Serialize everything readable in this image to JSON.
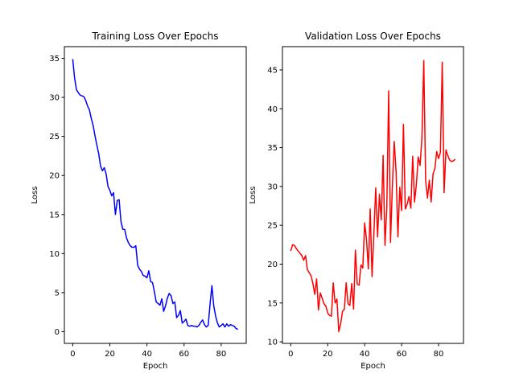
{
  "chart_data": [
    {
      "type": "line",
      "title": "Training Loss Over Epochs",
      "xlabel": "Epoch",
      "ylabel": "Loss",
      "xlim": [
        -4.5,
        93.5
      ],
      "ylim": [
        -1.5,
        36.5
      ],
      "xticks": [
        0,
        20,
        40,
        60,
        80
      ],
      "yticks": [
        0,
        5,
        10,
        15,
        20,
        25,
        30,
        35
      ],
      "grid": false,
      "color": "#0000ff",
      "x": [
        0,
        1,
        2,
        3,
        4,
        5,
        6,
        7,
        8,
        9,
        10,
        11,
        12,
        13,
        14,
        15,
        16,
        17,
        18,
        19,
        20,
        21,
        22,
        23,
        24,
        25,
        26,
        27,
        28,
        29,
        30,
        31,
        32,
        33,
        34,
        35,
        36,
        37,
        38,
        39,
        40,
        41,
        42,
        43,
        44,
        45,
        46,
        47,
        48,
        49,
        50,
        51,
        52,
        53,
        54,
        55,
        56,
        57,
        58,
        59,
        60,
        61,
        62,
        63,
        64,
        65,
        66,
        67,
        68,
        69,
        70,
        71,
        72,
        73,
        74,
        75,
        76,
        77,
        78,
        79,
        80,
        81,
        82,
        83,
        84,
        85,
        86,
        87,
        88,
        89
      ],
      "values": [
        34.9,
        32.5,
        31.0,
        30.6,
        30.3,
        30.2,
        30.1,
        29.6,
        28.9,
        28.4,
        27.3,
        26.4,
        25.1,
        23.9,
        22.8,
        21.2,
        20.6,
        21.0,
        20.2,
        18.6,
        18.1,
        17.4,
        17.8,
        15.0,
        16.8,
        16.9,
        14.1,
        13.1,
        13.1,
        12.0,
        11.4,
        11.0,
        10.8,
        10.8,
        11.0,
        8.5,
        8.0,
        7.7,
        7.2,
        7.1,
        6.9,
        7.8,
        6.4,
        6.3,
        5.1,
        3.8,
        3.6,
        3.4,
        4.2,
        2.6,
        3.3,
        4.3,
        4.9,
        4.6,
        3.6,
        3.8,
        1.8,
        2.1,
        2.7,
        1.1,
        1.3,
        1.6,
        0.8,
        0.7,
        0.8,
        0.7,
        0.7,
        0.6,
        0.8,
        1.2,
        1.5,
        0.9,
        0.6,
        0.8,
        3.5,
        5.9,
        3.3,
        2.0,
        1.1,
        0.6,
        0.8,
        1.0,
        0.6,
        1.0,
        0.7,
        0.9,
        0.8,
        0.7,
        0.4,
        0.3
      ]
    },
    {
      "type": "line",
      "title": "Validation Loss Over Epochs",
      "xlabel": "Epoch",
      "ylabel": "Loss",
      "xlim": [
        -4.5,
        93.5
      ],
      "ylim": [
        9.8,
        48.0
      ],
      "xticks": [
        0,
        20,
        40,
        60,
        80
      ],
      "yticks": [
        10,
        15,
        20,
        25,
        30,
        35,
        40,
        45
      ],
      "grid": false,
      "color": "#ff0000",
      "x": [
        0,
        1,
        2,
        3,
        4,
        5,
        6,
        7,
        8,
        9,
        10,
        11,
        12,
        13,
        14,
        15,
        16,
        17,
        18,
        19,
        20,
        21,
        22,
        23,
        24,
        25,
        26,
        27,
        28,
        29,
        30,
        31,
        32,
        33,
        34,
        35,
        36,
        37,
        38,
        39,
        40,
        41,
        42,
        43,
        44,
        45,
        46,
        47,
        48,
        49,
        50,
        51,
        52,
        53,
        54,
        55,
        56,
        57,
        58,
        59,
        60,
        61,
        62,
        63,
        64,
        65,
        66,
        67,
        68,
        69,
        70,
        71,
        72,
        73,
        74,
        75,
        76,
        77,
        78,
        79,
        80,
        81,
        82,
        83,
        84,
        85,
        86,
        87,
        88,
        89
      ],
      "values": [
        21.7,
        22.5,
        22.4,
        22.0,
        21.7,
        21.4,
        21.1,
        20.5,
        21.1,
        19.3,
        18.9,
        18.5,
        17.5,
        16.1,
        18.1,
        14.1,
        16.3,
        15.6,
        14.9,
        14.6,
        13.7,
        13.4,
        13.3,
        17.6,
        15.0,
        15.5,
        11.3,
        12.3,
        13.9,
        14.2,
        17.6,
        14.9,
        14.7,
        17.5,
        14.2,
        21.8,
        17.4,
        17.3,
        19.9,
        19.5,
        25.3,
        23.2,
        19.4,
        27.1,
        18.4,
        24.0,
        29.8,
        23.5,
        29.0,
        25.7,
        34.0,
        22.4,
        27.4,
        42.3,
        22.8,
        30.0,
        35.8,
        32.0,
        23.5,
        29.9,
        26.9,
        38.0,
        27.1,
        27.7,
        28.7,
        27.2,
        33.9,
        28.0,
        30.3,
        33.8,
        32.7,
        36.3,
        46.2,
        30.8,
        28.5,
        30.8,
        28.0,
        31.6,
        32.3,
        34.5,
        33.6,
        34.4,
        46.0,
        29.2,
        34.7,
        34.0,
        33.4,
        33.2,
        33.3,
        33.5
      ]
    }
  ]
}
